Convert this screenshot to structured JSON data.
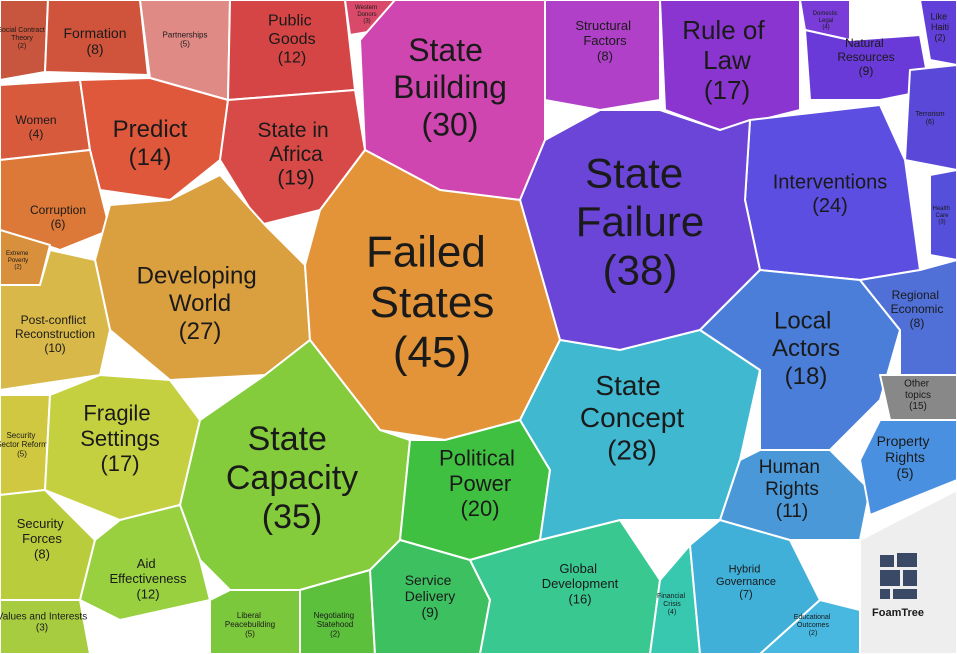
{
  "chart_data": {
    "type": "voronoi-treemap",
    "logo": "FoamTree",
    "categories": [
      "Social Contract Theory",
      "Formation",
      "Partnerships",
      "Public Goods",
      "Western Donors",
      "State Building",
      "Structural Factors",
      "Rule of Law",
      "Domestic Legal",
      "Natural Resources",
      "Like Haiti",
      "Terrorism",
      "Health Care",
      "Interventions",
      "State Failure",
      "Women",
      "Predict",
      "State in Africa",
      "Corruption",
      "Extreme Poverty",
      "Developing World",
      "Failed States",
      "Post-conflict Reconstruction",
      "Security Sector Reform",
      "Fragile Settings",
      "Security Forces",
      "State Capacity",
      "Aid Effectiveness",
      "Values and Interests",
      "Liberal Peacebuilding",
      "Negotiating Statehood",
      "Political Power",
      "Service Delivery",
      "Global Development",
      "State Concept",
      "Financial Crisis",
      "Hybrid Governance",
      "Educational Outcomes",
      "Local Actors",
      "Regional Economic",
      "Other topics",
      "Human Rights",
      "Property Rights"
    ],
    "values": [
      2,
      8,
      5,
      12,
      3,
      30,
      8,
      17,
      4,
      9,
      2,
      6,
      3,
      24,
      38,
      4,
      14,
      19,
      6,
      2,
      27,
      45,
      10,
      5,
      17,
      8,
      35,
      12,
      3,
      5,
      2,
      20,
      9,
      16,
      28,
      4,
      7,
      2,
      18,
      8,
      15,
      11,
      5
    ],
    "value_labels": [
      "(2)",
      "(8)",
      "(5)",
      "(12)",
      "(3)",
      "(30)",
      "(8)",
      "(17)",
      "(4)",
      "(9)",
      "(2)",
      "(6)",
      "(3)",
      "(24)",
      "(38)",
      "(4)",
      "(14)",
      "(19)",
      "(6)",
      "(2)",
      "(27)",
      "(45)",
      "(10)",
      "(5)",
      "(17)",
      "(8)",
      "(35)",
      "(12)",
      "(3)",
      "(5)",
      "(2)",
      "(20)",
      "(9)",
      "(16)",
      "(28)",
      "(4)",
      "(7)",
      "(2)",
      "(18)",
      "(8)",
      "(15)",
      "(11)",
      "(5)"
    ],
    "colors": [
      "#c8553d",
      "#d0543c",
      "#e08a86",
      "#d64545",
      "#d94a6a",
      "#d046b0",
      "#b040c8",
      "#8a35d0",
      "#7a3cd8",
      "#6a3ad8",
      "#6040d8",
      "#5a48d8",
      "#5550dc",
      "#5b4ee0",
      "#6a45d8",
      "#d85a3c",
      "#e0583c",
      "#d84a48",
      "#dc7838",
      "#d8903c",
      "#daa040",
      "#e39438",
      "#d8b848",
      "#d0c840",
      "#c4d040",
      "#b8cc3c",
      "#84cc3c",
      "#98d040",
      "#a8cc40",
      "#7cc83c",
      "#5cc03c",
      "#40c040",
      "#3cc060",
      "#38c890",
      "#40b8d0",
      "#38c8b0",
      "#40b0d8",
      "#48b8e0",
      "#4a7ed8",
      "#5070d8",
      "#888888",
      "#4a98d8",
      "#4a90e0"
    ]
  }
}
